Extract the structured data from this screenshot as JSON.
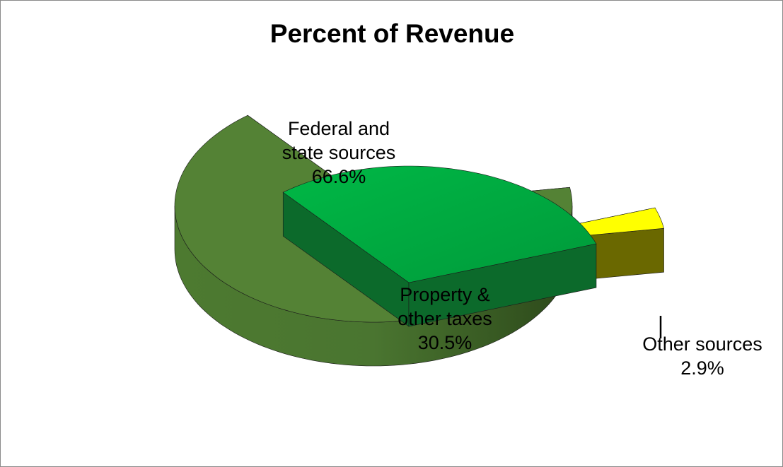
{
  "chart_data": {
    "type": "pie",
    "title": "Percent of Revenue",
    "slices": [
      {
        "label_lines": [
          "Federal and",
          "state sources"
        ],
        "value": 66.6,
        "value_label": "66.6%",
        "color": "#548235"
      },
      {
        "label_lines": [
          "Property &",
          "other taxes"
        ],
        "value": 30.5,
        "value_label": "30.5%",
        "color": "#00a33d"
      },
      {
        "label_lines": [
          "Other sources"
        ],
        "value": 2.9,
        "value_label": "2.9%",
        "color": "#ffff00"
      }
    ]
  }
}
